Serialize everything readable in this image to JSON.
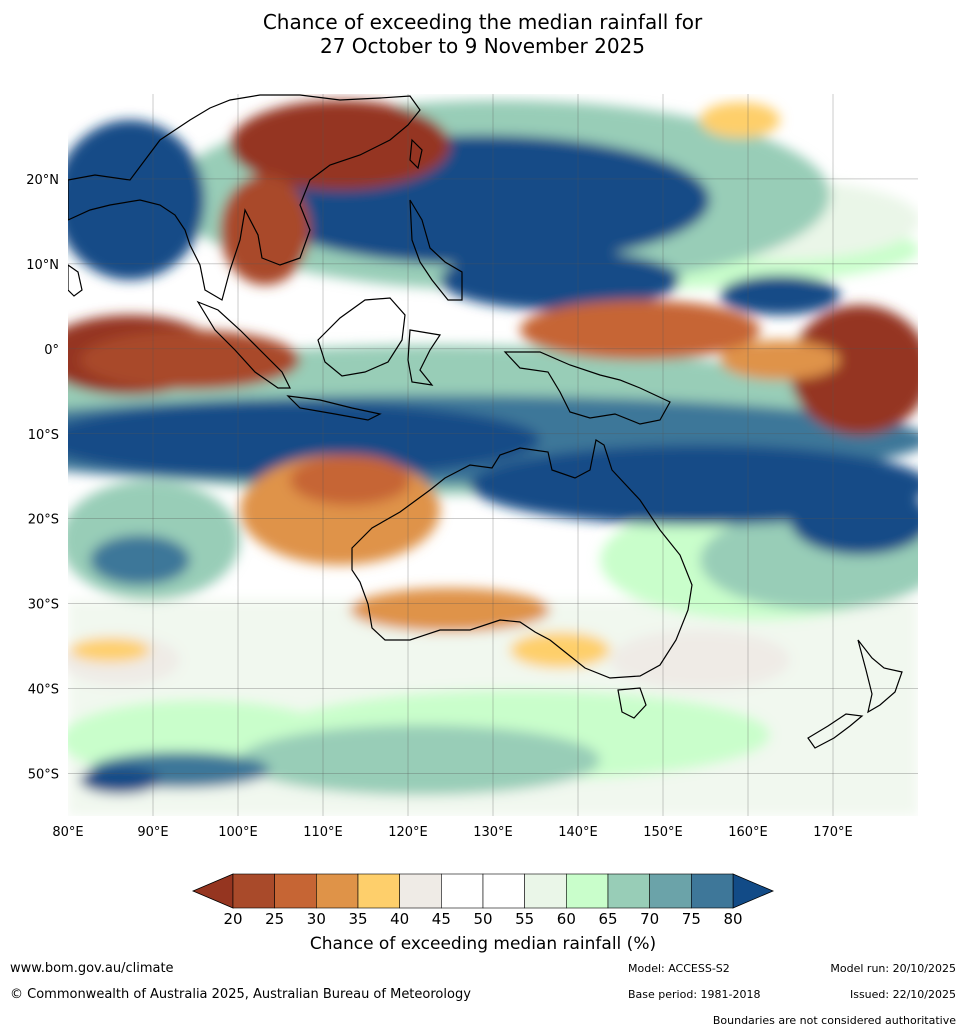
{
  "title_line1": "Chance of exceeding the median rainfall for",
  "title_line2": "27 October to 9 November 2025",
  "map": {
    "lon_range": [
      80,
      180
    ],
    "lat_range": [
      -55,
      30
    ],
    "lon_ticks": [
      {
        "value": 80,
        "label": "80°E"
      },
      {
        "value": 90,
        "label": "90°E"
      },
      {
        "value": 100,
        "label": "100°E"
      },
      {
        "value": 110,
        "label": "110°E"
      },
      {
        "value": 120,
        "label": "120°E"
      },
      {
        "value": 130,
        "label": "130°E"
      },
      {
        "value": 140,
        "label": "140°E"
      },
      {
        "value": 150,
        "label": "150°E"
      },
      {
        "value": 160,
        "label": "160°E"
      },
      {
        "value": 170,
        "label": "170°E"
      }
    ],
    "lat_ticks": [
      {
        "value": 20,
        "label": "20°N"
      },
      {
        "value": 10,
        "label": "10°N"
      },
      {
        "value": 0,
        "label": "0°"
      },
      {
        "value": -10,
        "label": "10°S"
      },
      {
        "value": -20,
        "label": "20°S"
      },
      {
        "value": -30,
        "label": "30°S"
      },
      {
        "value": -40,
        "label": "40°S"
      },
      {
        "value": -50,
        "label": "50°S"
      }
    ]
  },
  "colorbar": {
    "title": "Chance of exceeding median rainfall (%)",
    "ticks": [
      "20",
      "25",
      "30",
      "35",
      "40",
      "45",
      "50",
      "55",
      "60",
      "65",
      "70",
      "75",
      "80"
    ],
    "under_color": "#953520",
    "over_color": "#124b87",
    "colors": [
      "#a94a2a",
      "#c66534",
      "#df9348",
      "#fecf6b",
      "#efebe6",
      "#ffffff",
      "#ffffff",
      "#eaf6e8",
      "#c9fecb",
      "#98cdb7",
      "#6ba3a9",
      "#3e7799"
    ]
  },
  "footer": {
    "website": "www.bom.gov.au/climate",
    "copyright": "© Commonwealth of Australia 2025, Australian Bureau of Meteorology",
    "model": "Model: ACCESS-S2",
    "base_period": "Base period: 1981-2018",
    "model_run": "Model run: 20/10/2025",
    "issued": "Issued: 22/10/2025",
    "boundaries": "Boundaries are not considered authoritative"
  }
}
